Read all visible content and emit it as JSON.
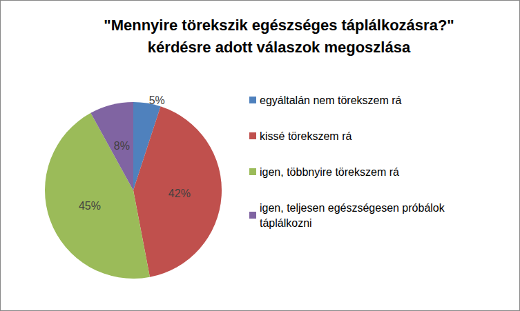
{
  "chart_data": {
    "type": "pie",
    "title": "\"Mennyire törekszik egészséges táplálkozásra?\"\nkérdésre adott válaszok megoszlása",
    "categories": [
      "egyáltalán nem törekszem rá",
      "kissé törekszem rá",
      "igen, többnyire törekszem rá",
      "igen, teljesen egészségesen próbálok táplálkozni"
    ],
    "values": [
      5,
      42,
      45,
      8
    ],
    "value_labels": [
      "5%",
      "42%",
      "45%",
      "8%"
    ],
    "colors": [
      "#4f81bd",
      "#c0504d",
      "#9bbb59",
      "#8064a2"
    ],
    "data_labels": true,
    "legend": "right"
  }
}
